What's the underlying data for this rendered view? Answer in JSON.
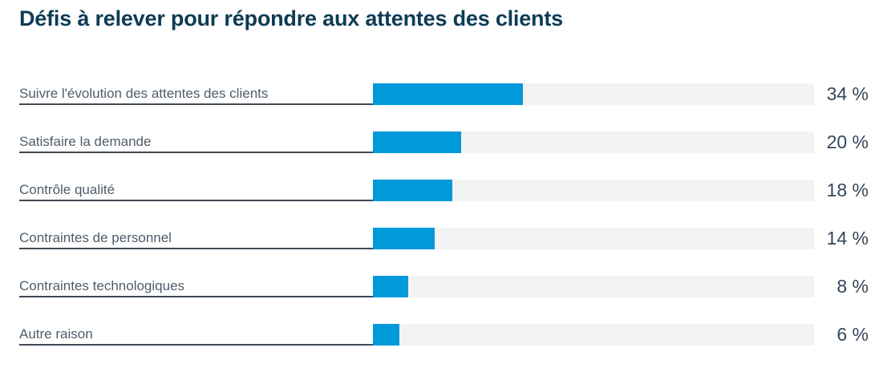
{
  "title": "Défis à relever pour répondre aux attentes des clients",
  "colors": {
    "title_text": "#0d3c54",
    "bar_fill": "#0099da",
    "bar_track": "#f2f3f3",
    "label_text": "#4e5d6c",
    "value_text": "#33475b",
    "label_underline": "#3f4a54",
    "background": "#ffffff"
  },
  "chart_data": {
    "type": "bar",
    "orientation": "horizontal",
    "title": "Défis à relever pour répondre aux attentes des clients",
    "categories": [
      "Suivre l'évolution des attentes des clients",
      "Satisfaire la demande",
      "Contrôle qualité",
      "Contraintes de personnel",
      "Contraintes technologiques",
      "Autre raison"
    ],
    "values": [
      34,
      20,
      18,
      14,
      8,
      6
    ],
    "display_values": [
      "34 %",
      "20 %",
      "18 %",
      "14 %",
      "8 %",
      "6 %"
    ],
    "value_suffix": " %",
    "xlim": [
      0,
      100
    ],
    "grid": false,
    "legend": false,
    "value_label_position": "right"
  }
}
